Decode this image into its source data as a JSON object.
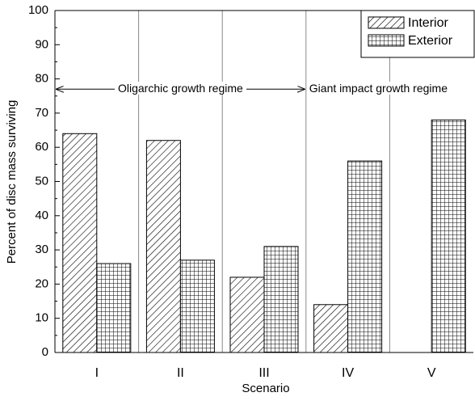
{
  "chart_data": {
    "type": "bar",
    "xlabel": "Scenario",
    "ylabel": "Percent of disc mass surviving",
    "categories": [
      "I",
      "II",
      "III",
      "IV",
      "V"
    ],
    "series": [
      {
        "name": "Interior",
        "color": "#000000",
        "pattern": "hatch",
        "values": [
          64,
          62,
          22,
          14,
          null
        ]
      },
      {
        "name": "Exterior",
        "color": "#000000",
        "pattern": "grid",
        "values": [
          26,
          27,
          31,
          56,
          68
        ]
      }
    ],
    "ylim": [
      0,
      100
    ],
    "yticks": [
      0,
      10,
      20,
      30,
      40,
      50,
      60,
      70,
      80,
      90,
      100
    ],
    "legend": "upper-right",
    "separators": true,
    "annotations": [
      "Oligarchic growth regime",
      "Giant impact growth regime"
    ]
  }
}
